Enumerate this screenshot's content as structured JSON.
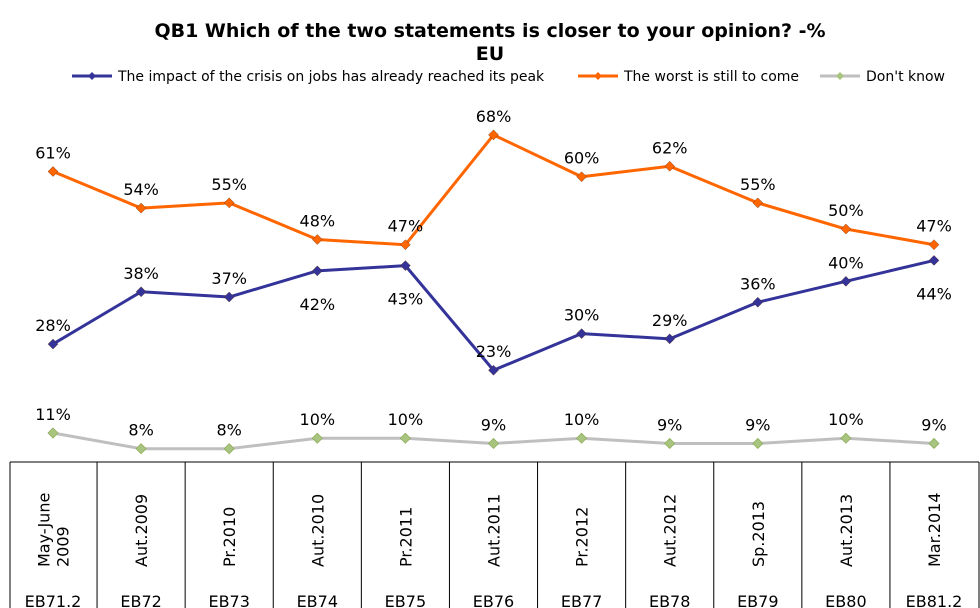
{
  "chart_data": {
    "type": "line",
    "title": "QB1 Which of the two statements is closer to your opinion? -%",
    "subtitle": "EU",
    "legend_position": "top",
    "grid": false,
    "ylim": [
      0,
      100
    ],
    "categories": [
      "May-June 2009",
      "Aut.2009",
      "Pr.2010",
      "Aut.2010",
      "Pr.2011",
      "Aut.2011",
      "Pr.2012",
      "Aut.2012",
      "Sp.2013",
      "Aut.2013",
      "Mar.2014"
    ],
    "category_lines": [
      [
        "May-June",
        "2009"
      ],
      [
        "Aut.2009"
      ],
      [
        "Pr.2010"
      ],
      [
        "Aut.2010"
      ],
      [
        "Pr.2011"
      ],
      [
        "Aut.2011"
      ],
      [
        "Pr.2012"
      ],
      [
        "Aut.2012"
      ],
      [
        "Sp.2013"
      ],
      [
        "Aut.2013"
      ],
      [
        "Mar.2014"
      ]
    ],
    "waves": [
      "EB71.2",
      "EB72",
      "EB73",
      "EB74",
      "EB75",
      "EB76",
      "EB77",
      "EB78",
      "EB79",
      "EB80",
      "EB81.2"
    ],
    "series": [
      {
        "name": "The impact of the crisis on jobs has already reached its peak",
        "color": "#333399",
        "label_position": [
          "above",
          "above",
          "above",
          "below",
          "below",
          "above",
          "above",
          "above",
          "above",
          "above",
          "below"
        ],
        "values": [
          28,
          38,
          37,
          42,
          43,
          23,
          30,
          29,
          36,
          40,
          44
        ],
        "labels": [
          "28%",
          "38%",
          "37%",
          "42%",
          "43%",
          "23%",
          "30%",
          "29%",
          "36%",
          "40%",
          "44%"
        ]
      },
      {
        "name": "The worst is still to come",
        "color": "#FF6600",
        "label_position": [
          "above",
          "above",
          "above",
          "above",
          "above",
          "above",
          "above",
          "above",
          "above",
          "above",
          "above"
        ],
        "values": [
          61,
          54,
          55,
          48,
          47,
          68,
          60,
          62,
          55,
          50,
          47
        ],
        "labels": [
          "61%",
          "54%",
          "55%",
          "48%",
          "47%",
          "68%",
          "60%",
          "62%",
          "55%",
          "50%",
          "47%"
        ]
      },
      {
        "name": "Don't know",
        "color": "#BFBFBF",
        "marker_color": "#A9C47F",
        "label_position": [
          "above",
          "above",
          "above",
          "above",
          "above",
          "above",
          "above",
          "above",
          "above",
          "above",
          "above"
        ],
        "values": [
          11,
          8,
          8,
          10,
          10,
          9,
          10,
          9,
          9,
          10,
          9
        ],
        "labels": [
          "11%",
          "8%",
          "8%",
          "10%",
          "10%",
          "9%",
          "10%",
          "9%",
          "9%",
          "10%",
          "9%"
        ]
      }
    ]
  }
}
